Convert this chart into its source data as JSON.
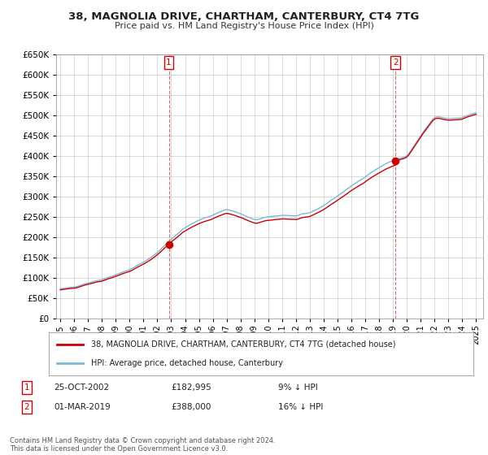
{
  "title": "38, MAGNOLIA DRIVE, CHARTHAM, CANTERBURY, CT4 7TG",
  "subtitle": "Price paid vs. HM Land Registry's House Price Index (HPI)",
  "ylim": [
    0,
    650000
  ],
  "yticks": [
    0,
    50000,
    100000,
    150000,
    200000,
    250000,
    300000,
    350000,
    400000,
    450000,
    500000,
    550000,
    600000,
    650000
  ],
  "ytick_labels": [
    "£0",
    "£50K",
    "£100K",
    "£150K",
    "£200K",
    "£250K",
    "£300K",
    "£350K",
    "£400K",
    "£450K",
    "£500K",
    "£550K",
    "£600K",
    "£650K"
  ],
  "hpi_color": "#7bb8d4",
  "price_color": "#cc0000",
  "sale1_year": 2002.83,
  "sale1_price": 182995,
  "sale2_year": 2019.17,
  "sale2_price": 388000,
  "annotation1_date": "25-OCT-2002",
  "annotation1_price": "£182,995",
  "annotation1_hpi": "9% ↓ HPI",
  "annotation2_date": "01-MAR-2019",
  "annotation2_price": "£388,000",
  "annotation2_hpi": "16% ↓ HPI",
  "legend_line1": "38, MAGNOLIA DRIVE, CHARTHAM, CANTERBURY, CT4 7TG (detached house)",
  "legend_line2": "HPI: Average price, detached house, Canterbury",
  "footer": "Contains HM Land Registry data © Crown copyright and database right 2024.\nThis data is licensed under the Open Government Licence v3.0.",
  "background_color": "#ffffff",
  "grid_color": "#cccccc",
  "xlim_left": 1994.7,
  "xlim_right": 2025.5
}
